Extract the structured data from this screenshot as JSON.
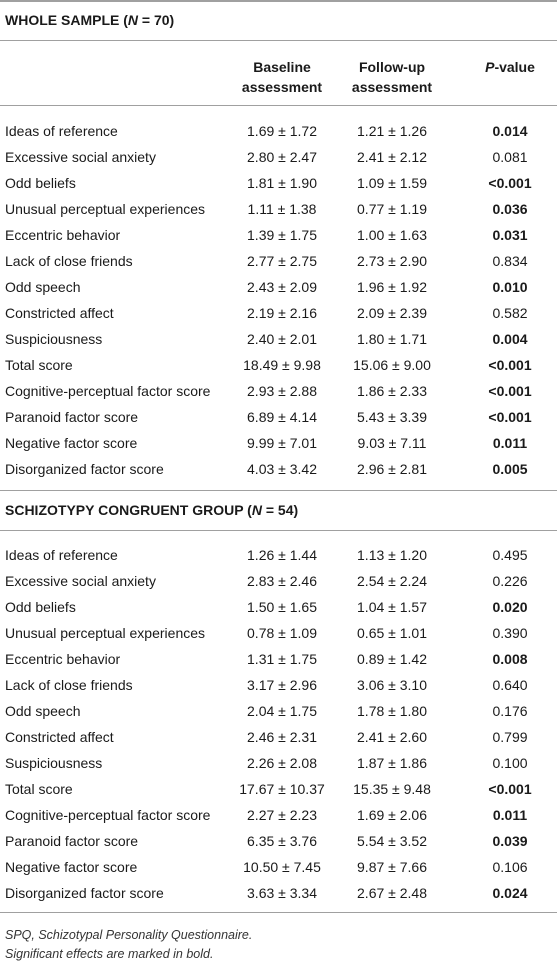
{
  "columns": {
    "baseline": [
      "Baseline",
      "assessment"
    ],
    "followup": [
      "Follow-up",
      "assessment"
    ],
    "p": {
      "italic": "P",
      "after": "-value"
    }
  },
  "sections": [
    {
      "header": {
        "before": "WHOLE SAMPLE (",
        "italic": "N",
        "after": " = 70)"
      },
      "rows": [
        {
          "label": "Ideas of reference",
          "baseline": "1.69 ± 1.72",
          "followup": "1.21 ± 1.26",
          "p": "0.014",
          "bold": true
        },
        {
          "label": "Excessive social anxiety",
          "baseline": "2.80 ± 2.47",
          "followup": "2.41 ± 2.12",
          "p": "0.081",
          "bold": false
        },
        {
          "label": "Odd beliefs",
          "baseline": "1.81 ± 1.90",
          "followup": "1.09 ± 1.59",
          "p": "<0.001",
          "bold": true
        },
        {
          "label": "Unusual perceptual experiences",
          "baseline": "1.11 ± 1.38",
          "followup": "0.77 ± 1.19",
          "p": "0.036",
          "bold": true
        },
        {
          "label": "Eccentric behavior",
          "baseline": "1.39 ± 1.75",
          "followup": "1.00 ± 1.63",
          "p": "0.031",
          "bold": true
        },
        {
          "label": "Lack of close friends",
          "baseline": "2.77 ± 2.75",
          "followup": "2.73 ± 2.90",
          "p": "0.834",
          "bold": false
        },
        {
          "label": "Odd speech",
          "baseline": "2.43 ± 2.09",
          "followup": "1.96 ± 1.92",
          "p": "0.010",
          "bold": true
        },
        {
          "label": "Constricted affect",
          "baseline": "2.19 ± 2.16",
          "followup": "2.09 ± 2.39",
          "p": "0.582",
          "bold": false
        },
        {
          "label": "Suspiciousness",
          "baseline": "2.40 ± 2.01",
          "followup": "1.80 ± 1.71",
          "p": "0.004",
          "bold": true
        },
        {
          "label": "Total score",
          "baseline": "18.49 ± 9.98",
          "followup": "15.06 ± 9.00",
          "p": "<0.001",
          "bold": true
        },
        {
          "label": "Cognitive-perceptual factor score",
          "baseline": "2.93 ± 2.88",
          "followup": "1.86 ± 2.33",
          "p": "<0.001",
          "bold": true
        },
        {
          "label": "Paranoid factor score",
          "baseline": "6.89 ± 4.14",
          "followup": "5.43 ± 3.39",
          "p": "<0.001",
          "bold": true
        },
        {
          "label": "Negative factor score",
          "baseline": "9.99 ± 7.01",
          "followup": "9.03 ± 7.11",
          "p": "0.011",
          "bold": true
        },
        {
          "label": "Disorganized factor score",
          "baseline": "4.03 ± 3.42",
          "followup": "2.96 ± 2.81",
          "p": "0.005",
          "bold": true
        }
      ]
    },
    {
      "header": {
        "before": "SCHIZOTYPY CONGRUENT GROUP (",
        "italic": "N",
        "after": " = 54)"
      },
      "rows": [
        {
          "label": "Ideas of reference",
          "baseline": "1.26 ± 1.44",
          "followup": "1.13 ± 1.20",
          "p": "0.495",
          "bold": false
        },
        {
          "label": "Excessive social anxiety",
          "baseline": "2.83 ± 2.46",
          "followup": "2.54 ± 2.24",
          "p": "0.226",
          "bold": false
        },
        {
          "label": "Odd beliefs",
          "baseline": "1.50 ± 1.65",
          "followup": "1.04 ± 1.57",
          "p": "0.020",
          "bold": true
        },
        {
          "label": "Unusual perceptual experiences",
          "baseline": "0.78 ± 1.09",
          "followup": "0.65 ± 1.01",
          "p": "0.390",
          "bold": false
        },
        {
          "label": "Eccentric behavior",
          "baseline": "1.31 ± 1.75",
          "followup": "0.89 ± 1.42",
          "p": "0.008",
          "bold": true
        },
        {
          "label": "Lack of close friends",
          "baseline": "3.17 ± 2.96",
          "followup": "3.06 ± 3.10",
          "p": "0.640",
          "bold": false
        },
        {
          "label": "Odd speech",
          "baseline": "2.04 ± 1.75",
          "followup": "1.78 ± 1.80",
          "p": "0.176",
          "bold": false
        },
        {
          "label": "Constricted affect",
          "baseline": "2.46 ± 2.31",
          "followup": "2.41 ± 2.60",
          "p": "0.799",
          "bold": false
        },
        {
          "label": "Suspiciousness",
          "baseline": "2.26 ± 2.08",
          "followup": "1.87 ± 1.86",
          "p": "0.100",
          "bold": false
        },
        {
          "label": "Total score",
          "baseline": "17.67 ± 10.37",
          "followup": "15.35 ± 9.48",
          "p": "<0.001",
          "bold": true
        },
        {
          "label": "Cognitive-perceptual factor score",
          "baseline": "2.27 ± 2.23",
          "followup": "1.69 ± 2.06",
          "p": "0.011",
          "bold": true
        },
        {
          "label": "Paranoid factor score",
          "baseline": "6.35 ± 3.76",
          "followup": "5.54 ± 3.52",
          "p": "0.039",
          "bold": true
        },
        {
          "label": "Negative factor score",
          "baseline": "10.50 ± 7.45",
          "followup": "9.87 ± 7.66",
          "p": "0.106",
          "bold": false
        },
        {
          "label": "Disorganized factor score",
          "baseline": "3.63 ± 3.34",
          "followup": "2.67 ± 2.48",
          "p": "0.024",
          "bold": true
        }
      ]
    }
  ],
  "footnotes": [
    "SPQ, Schizotypal Personality Questionnaire.",
    "Significant effects are marked in bold."
  ]
}
